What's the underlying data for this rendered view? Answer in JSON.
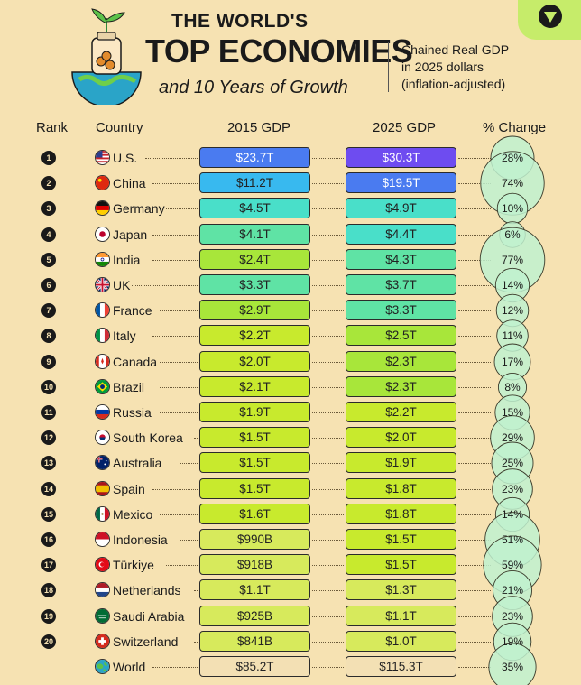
{
  "header": {
    "title_line1": "THE WORLD'S",
    "title_line2": "TOP ECONOMIES",
    "title_line3": "and 10 Years of Growth",
    "note": [
      "Chained Real GDP",
      "in 2025 dollars",
      "(inflation-adjusted)"
    ]
  },
  "columns": {
    "rank": "Rank",
    "country": "Country",
    "gdp2015": "2015 GDP",
    "gdp2025": "2025 GDP",
    "change": "% Change"
  },
  "colors": {
    "background": "#f6e2b2",
    "pill_ramp": [
      "#d7ea5c",
      "#c8ea2d",
      "#a8e63a",
      "#5fe3a5",
      "#49dfc9",
      "#38b9ef",
      "#4a7bf0",
      "#6e4cf0"
    ],
    "bubble": "#bff1cf"
  },
  "chart_data": {
    "type": "table",
    "rows": [
      {
        "rank": "1",
        "country": "U.S.",
        "flag": "us-flag",
        "gdp2015": "$23.7T",
        "gdp2025": "$30.3T",
        "change": "28%",
        "gdp2015_t": 23.7,
        "gdp2025_t": 30.3,
        "change_pct": 28
      },
      {
        "rank": "2",
        "country": "China",
        "flag": "china-flag",
        "gdp2015": "$11.2T",
        "gdp2025": "$19.5T",
        "change": "74%",
        "gdp2015_t": 11.2,
        "gdp2025_t": 19.5,
        "change_pct": 74
      },
      {
        "rank": "3",
        "country": "Germany",
        "flag": "germany-flag",
        "gdp2015": "$4.5T",
        "gdp2025": "$4.9T",
        "change": "10%",
        "gdp2015_t": 4.5,
        "gdp2025_t": 4.9,
        "change_pct": 10
      },
      {
        "rank": "4",
        "country": "Japan",
        "flag": "japan-flag",
        "gdp2015": "$4.1T",
        "gdp2025": "$4.4T",
        "change": "6%",
        "gdp2015_t": 4.1,
        "gdp2025_t": 4.4,
        "change_pct": 6
      },
      {
        "rank": "5",
        "country": "India",
        "flag": "india-flag",
        "gdp2015": "$2.4T",
        "gdp2025": "$4.3T",
        "change": "77%",
        "gdp2015_t": 2.4,
        "gdp2025_t": 4.3,
        "change_pct": 77
      },
      {
        "rank": "6",
        "country": "UK",
        "flag": "uk-flag",
        "gdp2015": "$3.3T",
        "gdp2025": "$3.7T",
        "change": "14%",
        "gdp2015_t": 3.3,
        "gdp2025_t": 3.7,
        "change_pct": 14
      },
      {
        "rank": "7",
        "country": "France",
        "flag": "france-flag",
        "gdp2015": "$2.9T",
        "gdp2025": "$3.3T",
        "change": "12%",
        "gdp2015_t": 2.9,
        "gdp2025_t": 3.3,
        "change_pct": 12
      },
      {
        "rank": "8",
        "country": "Italy",
        "flag": "italy-flag",
        "gdp2015": "$2.2T",
        "gdp2025": "$2.5T",
        "change": "11%",
        "gdp2015_t": 2.2,
        "gdp2025_t": 2.5,
        "change_pct": 11
      },
      {
        "rank": "9",
        "country": "Canada",
        "flag": "canada-flag",
        "gdp2015": "$2.0T",
        "gdp2025": "$2.3T",
        "change": "17%",
        "gdp2015_t": 2.0,
        "gdp2025_t": 2.3,
        "change_pct": 17
      },
      {
        "rank": "10",
        "country": "Brazil",
        "flag": "brazil-flag",
        "gdp2015": "$2.1T",
        "gdp2025": "$2.3T",
        "change": "8%",
        "gdp2015_t": 2.1,
        "gdp2025_t": 2.3,
        "change_pct": 8
      },
      {
        "rank": "11",
        "country": "Russia",
        "flag": "russia-flag",
        "gdp2015": "$1.9T",
        "gdp2025": "$2.2T",
        "change": "15%",
        "gdp2015_t": 1.9,
        "gdp2025_t": 2.2,
        "change_pct": 15
      },
      {
        "rank": "12",
        "country": "South Korea",
        "flag": "south-korea-flag",
        "gdp2015": "$1.5T",
        "gdp2025": "$2.0T",
        "change": "29%",
        "gdp2015_t": 1.5,
        "gdp2025_t": 2.0,
        "change_pct": 29
      },
      {
        "rank": "13",
        "country": "Australia",
        "flag": "australia-flag",
        "gdp2015": "$1.5T",
        "gdp2025": "$1.9T",
        "change": "25%",
        "gdp2015_t": 1.5,
        "gdp2025_t": 1.9,
        "change_pct": 25
      },
      {
        "rank": "14",
        "country": "Spain",
        "flag": "spain-flag",
        "gdp2015": "$1.5T",
        "gdp2025": "$1.8T",
        "change": "23%",
        "gdp2015_t": 1.5,
        "gdp2025_t": 1.8,
        "change_pct": 23
      },
      {
        "rank": "15",
        "country": "Mexico",
        "flag": "mexico-flag",
        "gdp2015": "$1.6T",
        "gdp2025": "$1.8T",
        "change": "14%",
        "gdp2015_t": 1.6,
        "gdp2025_t": 1.8,
        "change_pct": 14
      },
      {
        "rank": "16",
        "country": "Indonesia",
        "flag": "indonesia-flag",
        "gdp2015": "$990B",
        "gdp2025": "$1.5T",
        "change": "51%",
        "gdp2015_t": 0.99,
        "gdp2025_t": 1.5,
        "change_pct": 51
      },
      {
        "rank": "17",
        "country": "Türkiye",
        "flag": "turkiye-flag",
        "gdp2015": "$918B",
        "gdp2025": "$1.5T",
        "change": "59%",
        "gdp2015_t": 0.918,
        "gdp2025_t": 1.5,
        "change_pct": 59
      },
      {
        "rank": "18",
        "country": "Netherlands",
        "flag": "netherlands-flag",
        "gdp2015": "$1.1T",
        "gdp2025": "$1.3T",
        "change": "21%",
        "gdp2015_t": 1.1,
        "gdp2025_t": 1.3,
        "change_pct": 21
      },
      {
        "rank": "19",
        "country": "Saudi Arabia",
        "flag": "saudi-arabia-flag",
        "gdp2015": "$925B",
        "gdp2025": "$1.1T",
        "change": "23%",
        "gdp2015_t": 0.925,
        "gdp2025_t": 1.1,
        "change_pct": 23
      },
      {
        "rank": "20",
        "country": "Switzerland",
        "flag": "switzerland-flag",
        "gdp2015": "$841B",
        "gdp2025": "$1.0T",
        "change": "19%",
        "gdp2015_t": 0.841,
        "gdp2025_t": 1.0,
        "change_pct": 19
      },
      {
        "rank": "",
        "country": "World",
        "flag": "globe-icon",
        "gdp2015": "$85.2T",
        "gdp2025": "$115.3T",
        "change": "35%",
        "gdp2015_t": 85.2,
        "gdp2025_t": 115.3,
        "change_pct": 35,
        "is_total": true
      }
    ]
  }
}
